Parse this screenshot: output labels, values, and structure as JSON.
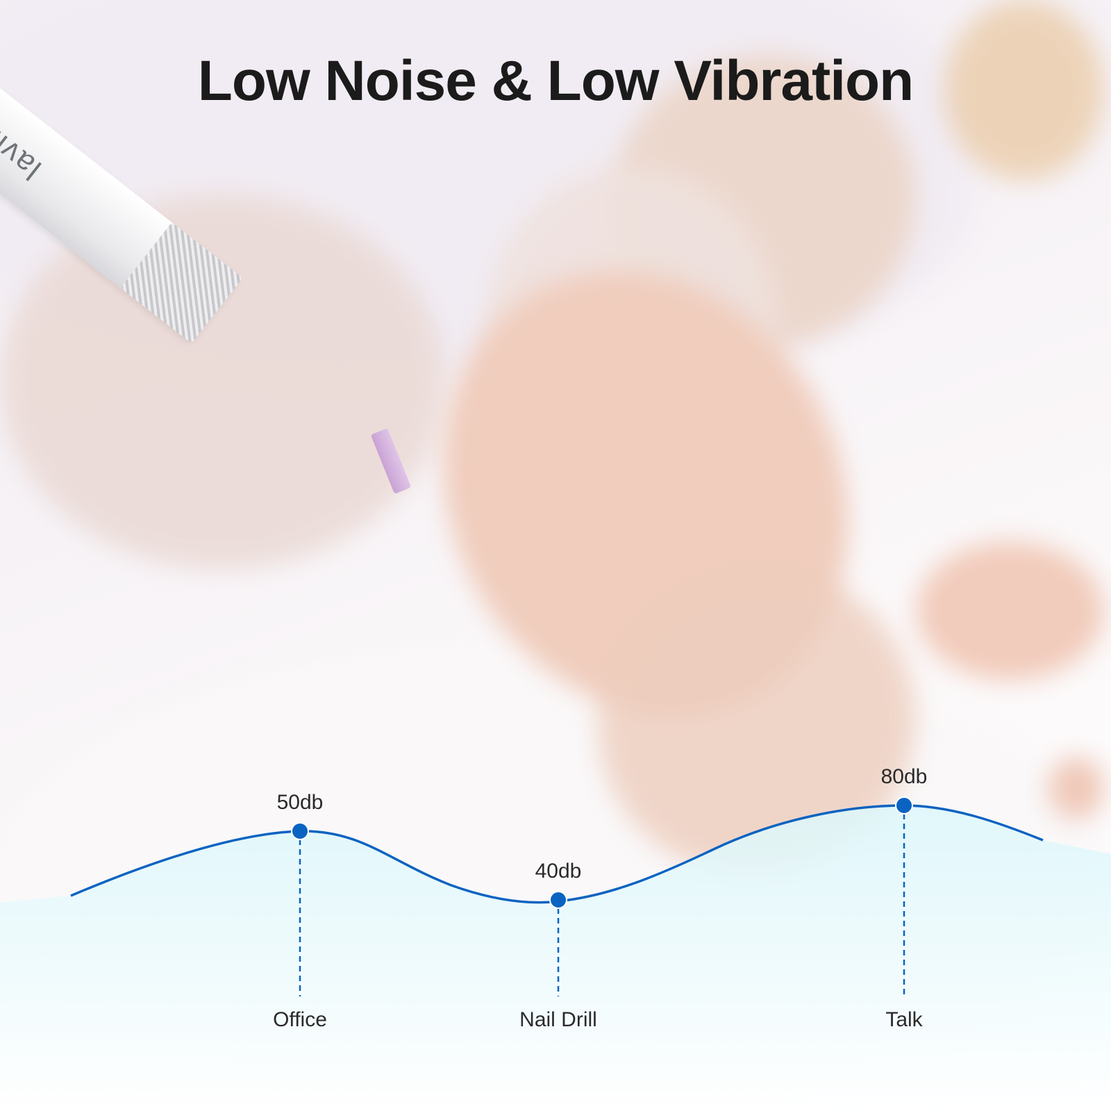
{
  "title": "Low Noise & Low Vibration",
  "product_logo": "lavinda",
  "colors": {
    "line": "#0b63c1",
    "fill": "#dff8fb",
    "title": "#1b1b1b"
  },
  "chart_data": {
    "type": "line",
    "unit": "db",
    "categories": [
      "Office",
      "Nail Drill",
      "Talk"
    ],
    "values": [
      50,
      40,
      80
    ],
    "value_labels": [
      "50db",
      "40db",
      "80db"
    ]
  }
}
